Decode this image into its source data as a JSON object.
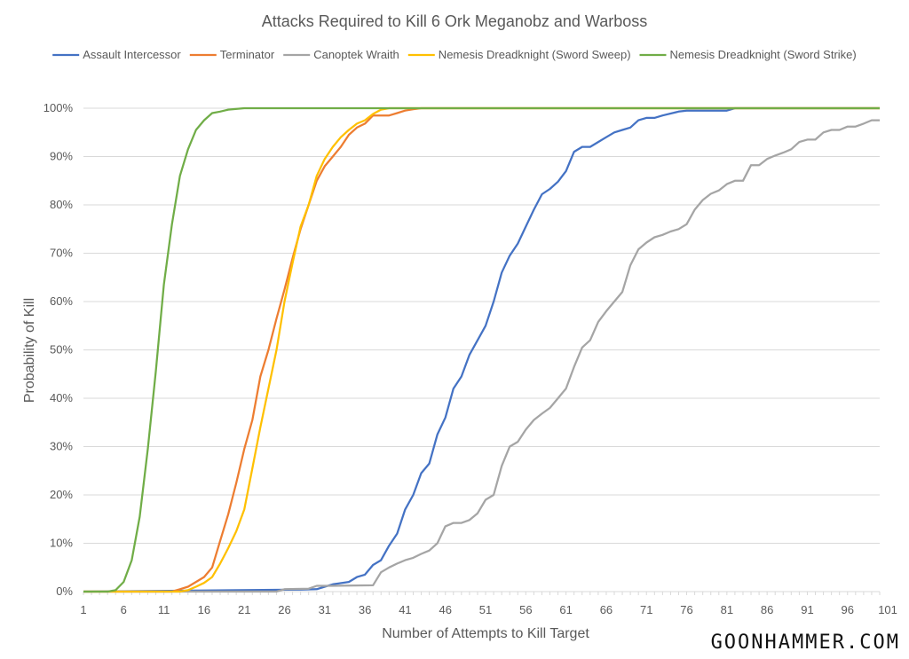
{
  "watermark": "GOONHAMMER.COM",
  "chart_data": {
    "type": "line",
    "title": "Attacks Required to Kill 6 Ork Meganobz and Warboss",
    "xlabel": "Number of Attempts to Kill Target",
    "ylabel": "Probability of Kill",
    "xlim": [
      1,
      100
    ],
    "ylim": [
      0,
      1
    ],
    "x_ticks": [
      1,
      6,
      11,
      16,
      21,
      26,
      31,
      36,
      41,
      46,
      51,
      56,
      61,
      66,
      71,
      76,
      81,
      86,
      91,
      96,
      101
    ],
    "y_ticks": [
      "0%",
      "10%",
      "20%",
      "30%",
      "40%",
      "50%",
      "60%",
      "70%",
      "80%",
      "90%",
      "100%"
    ],
    "grid": true,
    "legend_position": "top",
    "series": [
      {
        "name": "Assault Intercessor",
        "color": "#4472C4",
        "points": [
          [
            1,
            0
          ],
          [
            28,
            0.004
          ],
          [
            30,
            0.005
          ],
          [
            31,
            0.01
          ],
          [
            32,
            0.015
          ],
          [
            34,
            0.02
          ],
          [
            35,
            0.03
          ],
          [
            36,
            0.035
          ],
          [
            37,
            0.055
          ],
          [
            38,
            0.065
          ],
          [
            39,
            0.095
          ],
          [
            40,
            0.12
          ],
          [
            41,
            0.17
          ],
          [
            42,
            0.2
          ],
          [
            43,
            0.245
          ],
          [
            44,
            0.265
          ],
          [
            45,
            0.325
          ],
          [
            46,
            0.36
          ],
          [
            47,
            0.42
          ],
          [
            48,
            0.445
          ],
          [
            49,
            0.49
          ],
          [
            50,
            0.52
          ],
          [
            51,
            0.55
          ],
          [
            52,
            0.6
          ],
          [
            53,
            0.66
          ],
          [
            54,
            0.695
          ],
          [
            55,
            0.72
          ],
          [
            56,
            0.755
          ],
          [
            57,
            0.79
          ],
          [
            58,
            0.822
          ],
          [
            59,
            0.833
          ],
          [
            60,
            0.848
          ],
          [
            61,
            0.87
          ],
          [
            62,
            0.91
          ],
          [
            63,
            0.92
          ],
          [
            64,
            0.92
          ],
          [
            65,
            0.93
          ],
          [
            66,
            0.94
          ],
          [
            67,
            0.95
          ],
          [
            68,
            0.955
          ],
          [
            69,
            0.96
          ],
          [
            70,
            0.975
          ],
          [
            71,
            0.98
          ],
          [
            72,
            0.98
          ],
          [
            73,
            0.985
          ],
          [
            75,
            0.993
          ],
          [
            76,
            0.995
          ],
          [
            81,
            0.995
          ],
          [
            82,
            1
          ],
          [
            100,
            1
          ]
        ]
      },
      {
        "name": "Terminator",
        "color": "#ED7D31",
        "points": [
          [
            1,
            0
          ],
          [
            12,
            0
          ],
          [
            13,
            0.005
          ],
          [
            14,
            0.01
          ],
          [
            15,
            0.02
          ],
          [
            16,
            0.03
          ],
          [
            17,
            0.05
          ],
          [
            18,
            0.105
          ],
          [
            19,
            0.16
          ],
          [
            20,
            0.225
          ],
          [
            21,
            0.295
          ],
          [
            22,
            0.355
          ],
          [
            23,
            0.445
          ],
          [
            24,
            0.5
          ],
          [
            25,
            0.565
          ],
          [
            26,
            0.625
          ],
          [
            27,
            0.69
          ],
          [
            28,
            0.75
          ],
          [
            29,
            0.8
          ],
          [
            30,
            0.85
          ],
          [
            31,
            0.88
          ],
          [
            32,
            0.9
          ],
          [
            33,
            0.92
          ],
          [
            34,
            0.945
          ],
          [
            35,
            0.96
          ],
          [
            36,
            0.968
          ],
          [
            37,
            0.985
          ],
          [
            39,
            0.985
          ],
          [
            40,
            0.99
          ],
          [
            41,
            0.995
          ],
          [
            42,
            0.998
          ],
          [
            43,
            1
          ],
          [
            100,
            1
          ]
        ]
      },
      {
        "name": "Canoptek Wraith",
        "color": "#A5A5A5",
        "points": [
          [
            1,
            0
          ],
          [
            25,
            0
          ],
          [
            26,
            0.005
          ],
          [
            29,
            0.006
          ],
          [
            30,
            0.012
          ],
          [
            32,
            0.012
          ],
          [
            37,
            0.013
          ],
          [
            38,
            0.04
          ],
          [
            39,
            0.05
          ],
          [
            40,
            0.058
          ],
          [
            41,
            0.065
          ],
          [
            42,
            0.07
          ],
          [
            43,
            0.078
          ],
          [
            44,
            0.085
          ],
          [
            45,
            0.1
          ],
          [
            46,
            0.135
          ],
          [
            47,
            0.142
          ],
          [
            48,
            0.142
          ],
          [
            49,
            0.148
          ],
          [
            50,
            0.162
          ],
          [
            51,
            0.19
          ],
          [
            52,
            0.2
          ],
          [
            53,
            0.26
          ],
          [
            54,
            0.3
          ],
          [
            55,
            0.31
          ],
          [
            56,
            0.335
          ],
          [
            57,
            0.355
          ],
          [
            58,
            0.368
          ],
          [
            59,
            0.38
          ],
          [
            60,
            0.4
          ],
          [
            61,
            0.42
          ],
          [
            62,
            0.465
          ],
          [
            63,
            0.505
          ],
          [
            64,
            0.52
          ],
          [
            65,
            0.558
          ],
          [
            66,
            0.58
          ],
          [
            67,
            0.6
          ],
          [
            68,
            0.62
          ],
          [
            69,
            0.675
          ],
          [
            70,
            0.708
          ],
          [
            71,
            0.722
          ],
          [
            72,
            0.733
          ],
          [
            73,
            0.738
          ],
          [
            74,
            0.745
          ],
          [
            75,
            0.75
          ],
          [
            76,
            0.76
          ],
          [
            77,
            0.79
          ],
          [
            78,
            0.81
          ],
          [
            79,
            0.823
          ],
          [
            80,
            0.83
          ],
          [
            81,
            0.843
          ],
          [
            82,
            0.85
          ],
          [
            83,
            0.85
          ],
          [
            84,
            0.882
          ],
          [
            85,
            0.882
          ],
          [
            86,
            0.895
          ],
          [
            87,
            0.902
          ],
          [
            88,
            0.908
          ],
          [
            89,
            0.915
          ],
          [
            90,
            0.93
          ],
          [
            91,
            0.935
          ],
          [
            92,
            0.935
          ],
          [
            93,
            0.95
          ],
          [
            94,
            0.955
          ],
          [
            95,
            0.955
          ],
          [
            96,
            0.962
          ],
          [
            97,
            0.962
          ],
          [
            98,
            0.968
          ],
          [
            99,
            0.975
          ],
          [
            100,
            0.975
          ]
        ]
      },
      {
        "name": "Nemesis Dreadknight (Sword Sweep)",
        "color": "#FFC000",
        "points": [
          [
            1,
            0
          ],
          [
            13,
            0
          ],
          [
            14,
            0.003
          ],
          [
            15,
            0.01
          ],
          [
            16,
            0.018
          ],
          [
            17,
            0.03
          ],
          [
            18,
            0.058
          ],
          [
            19,
            0.09
          ],
          [
            20,
            0.125
          ],
          [
            21,
            0.17
          ],
          [
            22,
            0.255
          ],
          [
            23,
            0.34
          ],
          [
            24,
            0.42
          ],
          [
            25,
            0.5
          ],
          [
            26,
            0.6
          ],
          [
            27,
            0.68
          ],
          [
            28,
            0.755
          ],
          [
            29,
            0.8
          ],
          [
            30,
            0.86
          ],
          [
            31,
            0.895
          ],
          [
            32,
            0.92
          ],
          [
            33,
            0.94
          ],
          [
            34,
            0.955
          ],
          [
            35,
            0.968
          ],
          [
            36,
            0.975
          ],
          [
            37,
            0.988
          ],
          [
            38,
            0.997
          ],
          [
            39,
            1
          ],
          [
            100,
            1
          ]
        ]
      },
      {
        "name": "Nemesis Dreadknight (Sword Strike)",
        "color": "#70AD47",
        "points": [
          [
            1,
            0
          ],
          [
            4,
            0
          ],
          [
            5,
            0.003
          ],
          [
            6,
            0.02
          ],
          [
            7,
            0.065
          ],
          [
            8,
            0.155
          ],
          [
            9,
            0.295
          ],
          [
            10,
            0.455
          ],
          [
            11,
            0.635
          ],
          [
            12,
            0.76
          ],
          [
            13,
            0.86
          ],
          [
            14,
            0.915
          ],
          [
            15,
            0.955
          ],
          [
            16,
            0.975
          ],
          [
            17,
            0.99
          ],
          [
            18,
            0.993
          ],
          [
            19,
            0.997
          ],
          [
            21,
            1
          ],
          [
            100,
            1
          ]
        ]
      }
    ]
  }
}
